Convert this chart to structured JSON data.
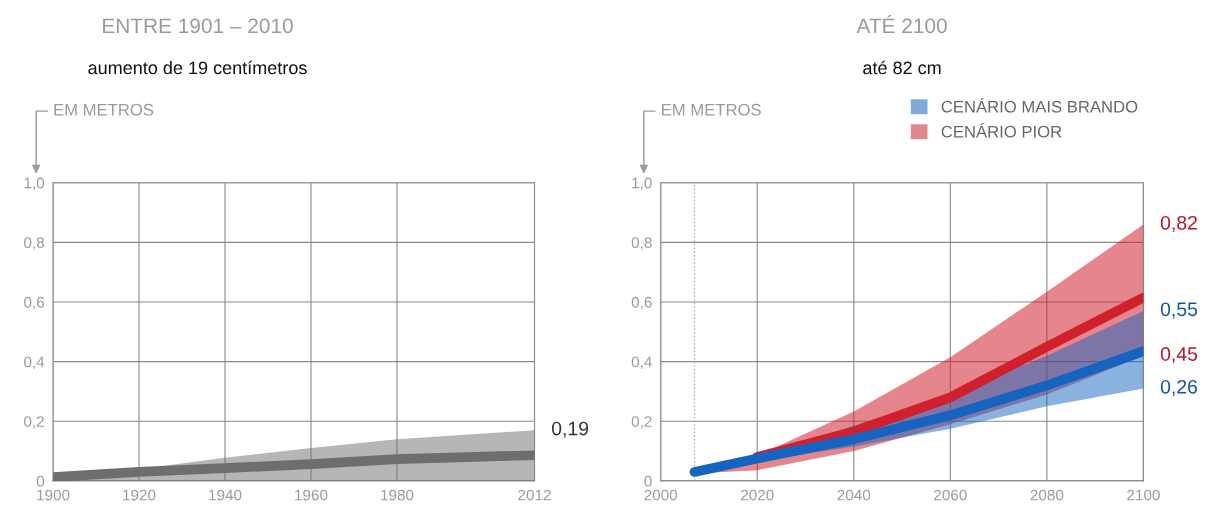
{
  "chart_data": [
    {
      "type": "line",
      "title": "ENTRE 1901 – 2010",
      "subtitle": "aumento de 19 centímetros",
      "ylabel": "EM METROS",
      "x": [
        1900,
        1920,
        1940,
        1960,
        1980,
        2012
      ],
      "series": [
        {
          "color": "#6e6e6e",
          "values": [
            0.013,
            0.03,
            0.043,
            0.056,
            0.073,
            0.086
          ],
          "lower": [
            0,
            0,
            0,
            0,
            0,
            0
          ],
          "upper": [
            0.005,
            0.04,
            0.078,
            0.11,
            0.14,
            0.17
          ]
        }
      ],
      "xlim": [
        1900,
        2012
      ],
      "xticks": [
        1900,
        1920,
        1940,
        1960,
        1980,
        2012
      ],
      "ylim": [
        0,
        1
      ],
      "yticks": [
        {
          "value": 0,
          "label": "0"
        },
        {
          "value": 0.2,
          "label": "0,2"
        },
        {
          "value": 0.4,
          "label": "0,4"
        },
        {
          "value": 0.6,
          "label": "0,6"
        },
        {
          "value": 0.8,
          "label": "0,8"
        },
        {
          "value": 1.0,
          "label": "1,0"
        }
      ],
      "grid": true,
      "legend": false,
      "annotations": [
        "0,19"
      ]
    },
    {
      "type": "line",
      "title": "ATÉ 2100",
      "subtitle": "até 82 cm",
      "ylabel": "EM METROS",
      "x": [
        2007,
        2020,
        2040,
        2060,
        2080,
        2100
      ],
      "series": [
        {
          "name": "CENÁRIO MAIS BRANDO",
          "color": "#1565c0",
          "values": [
            0.03,
            0.075,
            0.14,
            0.22,
            0.32,
            0.435
          ],
          "lower": [
            0.025,
            0.065,
            0.115,
            0.175,
            0.25,
            0.31
          ],
          "upper": [
            0.035,
            0.085,
            0.185,
            0.29,
            0.42,
            0.57
          ]
        },
        {
          "name": "CENÁRIO PIOR",
          "color": "#d0202e",
          "values": [
            null,
            0.08,
            0.165,
            0.28,
            0.45,
            0.615
          ],
          "lower": [
            0.025,
            0.036,
            0.1,
            0.19,
            0.29,
            0.42
          ],
          "upper": [
            0.035,
            0.085,
            0.233,
            0.415,
            0.634,
            0.86
          ]
        }
      ],
      "xlim": [
        2000,
        2100
      ],
      "xticks": [
        2000,
        2020,
        2040,
        2060,
        2080,
        2100
      ],
      "ylim": [
        0,
        1
      ],
      "yticks": [
        {
          "value": 0,
          "label": "0"
        },
        {
          "value": 0.2,
          "label": "0,2"
        },
        {
          "value": 0.4,
          "label": "0,4"
        },
        {
          "value": 0.6,
          "label": "0,6"
        },
        {
          "value": 0.8,
          "label": "0,8"
        },
        {
          "value": 1.0,
          "label": "1,0"
        }
      ],
      "grid": true,
      "legend": "top right",
      "ref_lines": [
        {
          "axis": "x",
          "value": 2007,
          "line_style": "dotted",
          "color": "#aaaaaa"
        }
      ],
      "annotations": [
        "0,82",
        "0,55",
        "0,45",
        "0,26"
      ]
    }
  ]
}
